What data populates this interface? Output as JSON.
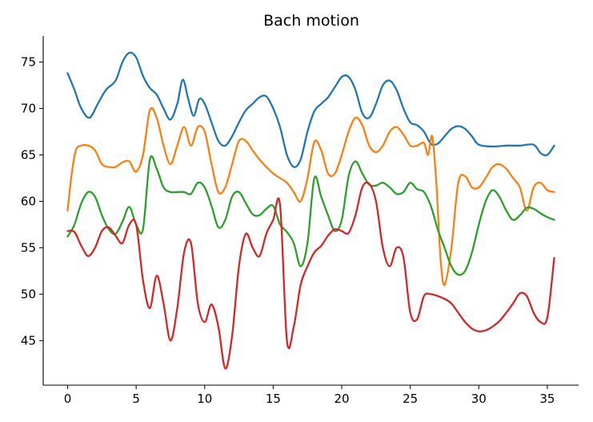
{
  "chart_data": {
    "type": "line",
    "title": "Bach motion",
    "xlabel": "",
    "ylabel": "",
    "xlim": [
      -1.78,
      37.28
    ],
    "ylim": [
      40.2,
      77.8
    ],
    "xticks": [
      0,
      5,
      10,
      15,
      20,
      25,
      30,
      35
    ],
    "yticks": [
      45,
      50,
      55,
      60,
      65,
      70,
      75
    ],
    "grid": false,
    "legend": "none",
    "series": [
      {
        "color": "#1f77b4",
        "x": [
          0,
          0.5,
          1,
          1.6,
          2.2,
          2.8,
          3.5,
          4,
          4.5,
          5,
          5.5,
          6,
          6.5,
          7,
          7.5,
          8,
          8.4,
          8.8,
          9.2,
          9.6,
          10,
          10.5,
          11,
          11.5,
          12,
          12.5,
          13,
          13.5,
          14,
          14.5,
          15,
          15.5,
          16,
          16.5,
          17,
          17.5,
          18,
          18.5,
          19,
          19.5,
          20,
          20.5,
          21,
          21.5,
          22,
          22.5,
          23,
          23.5,
          24,
          24.5,
          25,
          25.5,
          26,
          26.5,
          27,
          27.5,
          28,
          28.5,
          29,
          29.5,
          30,
          31,
          32,
          33,
          34,
          34.5,
          35,
          35.5
        ],
        "values": [
          73.8,
          72,
          70,
          69,
          70.5,
          72,
          73,
          75,
          76,
          75.5,
          73.5,
          72.2,
          71.5,
          70,
          68.8,
          70.5,
          73.1,
          71,
          69.2,
          71,
          70.5,
          68.5,
          66.5,
          66,
          67,
          68.5,
          69.8,
          70.5,
          71.2,
          71.3,
          70,
          68,
          65,
          63.7,
          64.5,
          67.5,
          69.7,
          70.5,
          71.2,
          72.3,
          73.4,
          73.4,
          72,
          69.5,
          69,
          70.5,
          72.5,
          73,
          72,
          70,
          68.5,
          68.2,
          67.5,
          66.2,
          66.2,
          67,
          67.8,
          68.1,
          67.8,
          67,
          66.1,
          65.9,
          66,
          66,
          66.1,
          65.2,
          65,
          66
        ]
      },
      {
        "color": "#ff7f0e",
        "x": [
          0,
          0.3,
          0.6,
          1,
          1.5,
          2,
          2.5,
          3,
          3.5,
          4,
          4.5,
          5,
          5.5,
          6,
          6.5,
          7,
          7.5,
          8,
          8.5,
          9,
          9.5,
          10,
          10.5,
          11,
          11.5,
          12,
          12.5,
          13,
          13.5,
          14,
          14.5,
          15,
          15.5,
          16,
          16.5,
          17,
          17.5,
          18,
          18.5,
          19,
          19.5,
          20,
          20.5,
          21,
          21.5,
          22,
          22.5,
          23,
          23.5,
          24,
          24.5,
          25,
          25.5,
          26,
          26.3,
          26.6,
          26.9,
          27.2,
          27.5,
          28,
          28.5,
          29,
          29.5,
          30,
          30.5,
          31,
          31.5,
          32,
          32.5,
          33,
          33.5,
          34,
          34.5,
          35,
          35.5
        ],
        "values": [
          59,
          63,
          65.5,
          66,
          66,
          65.5,
          64,
          63.7,
          63.7,
          64.2,
          64.3,
          63.2,
          65,
          69.8,
          69,
          66,
          64,
          66,
          68,
          66,
          68,
          67.5,
          64,
          61,
          61.5,
          64,
          66.5,
          66.5,
          65.5,
          64.5,
          63.7,
          63,
          62.5,
          62,
          61,
          60,
          62.5,
          66.4,
          65.5,
          63,
          63,
          65,
          67.5,
          69,
          68.2,
          66,
          65.3,
          66,
          67.5,
          68,
          67.2,
          66,
          66,
          66.3,
          65,
          67,
          62,
          54,
          51,
          55,
          62,
          62.7,
          61.5,
          61.5,
          62.5,
          63.7,
          64,
          63.5,
          62.5,
          61.5,
          59,
          61.5,
          62,
          61.2,
          61
        ]
      },
      {
        "color": "#2ca02c",
        "x": [
          0,
          0.5,
          1,
          1.5,
          2,
          2.5,
          3,
          3.5,
          4,
          4.5,
          5,
          5.5,
          6,
          6.5,
          7,
          7.5,
          8,
          8.5,
          9,
          9.5,
          10,
          10.5,
          11,
          11.5,
          12,
          12.5,
          13,
          13.5,
          14,
          14.5,
          15,
          15.5,
          16,
          16.5,
          17,
          17.5,
          18,
          18.5,
          19,
          19.5,
          20,
          20.5,
          21,
          21.5,
          22,
          22.5,
          23,
          23.5,
          24,
          24.5,
          25,
          25.5,
          26,
          26.5,
          27,
          27.5,
          28,
          28.5,
          29,
          29.5,
          30,
          30.5,
          31,
          31.5,
          32,
          32.5,
          33,
          33.5,
          34,
          34.5,
          35,
          35.5
        ],
        "values": [
          56.2,
          57.5,
          59.8,
          61,
          60.5,
          58.5,
          57,
          56.5,
          57.8,
          59.4,
          57.5,
          57,
          64.5,
          63.5,
          61.5,
          61,
          61,
          61,
          60.8,
          62,
          61.5,
          59.5,
          57.2,
          58,
          60.5,
          61,
          59.8,
          58.6,
          58.5,
          59.2,
          59.5,
          57.5,
          56.7,
          55.5,
          53,
          55.5,
          62.5,
          60.5,
          58.5,
          56.8,
          58,
          62.7,
          64.3,
          63,
          61.8,
          61.7,
          62,
          61.5,
          60.8,
          61,
          62,
          61.3,
          61,
          59.5,
          57,
          55,
          53,
          52.1,
          52.5,
          54.5,
          57.5,
          60,
          61.2,
          60.5,
          59,
          58,
          58.5,
          59.3,
          59.2,
          58.7,
          58.3,
          58
        ]
      },
      {
        "color": "#d62728",
        "x": [
          0,
          0.5,
          1,
          1.5,
          2,
          2.5,
          3,
          3.5,
          4,
          4.5,
          5,
          5.5,
          6,
          6.5,
          7,
          7.5,
          8,
          8.5,
          9,
          9.5,
          10,
          10.5,
          11,
          11.5,
          12,
          12.5,
          13,
          13.5,
          14,
          14.5,
          15,
          15.5,
          16,
          16.5,
          17,
          17.5,
          18,
          18.5,
          19,
          19.5,
          20,
          20.5,
          21,
          21.5,
          22,
          22.5,
          23,
          23.5,
          24,
          24.5,
          25,
          25.5,
          26,
          26.5,
          27,
          27.5,
          28,
          28.5,
          29,
          29.5,
          30,
          30.5,
          31,
          31.5,
          32,
          32.5,
          33,
          33.5,
          34,
          34.5,
          35,
          35.5
        ],
        "values": [
          56.8,
          56.7,
          55.2,
          54.1,
          55,
          56.8,
          57.2,
          56.3,
          55.5,
          57.5,
          57.5,
          51.5,
          48.5,
          52,
          49,
          45,
          48.5,
          54.5,
          55.5,
          49,
          47,
          48.9,
          46.5,
          42,
          45.5,
          53,
          56.5,
          55,
          54.1,
          56.5,
          58,
          59.6,
          45,
          46.5,
          51,
          53,
          54.5,
          55.2,
          56.3,
          57,
          56.8,
          56.6,
          58.5,
          61.5,
          61.9,
          60,
          55,
          53,
          55,
          54,
          48,
          47.3,
          49.8,
          50,
          49.8,
          49.5,
          49,
          48,
          47,
          46.3,
          46,
          46.1,
          46.5,
          47.1,
          48,
          49,
          50.1,
          49.8,
          48,
          47,
          47.5,
          53.9
        ]
      }
    ]
  }
}
